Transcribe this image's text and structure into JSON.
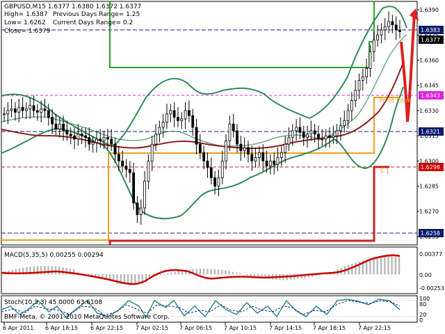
{
  "colors": {
    "background": "#ffffff",
    "grid": "#c8c8c8",
    "candle": "#000000",
    "bollinger": "#2e8b57",
    "ma": "#8b2020",
    "pivot": "#f0a020",
    "support": "#cc2020",
    "resistance": "#2ca02c",
    "arrow": "#dd2020",
    "macd_hist": "#b8b8b8",
    "macd_signal": "#cc0000",
    "stoch_main": "#2e8b8b",
    "stoch_signal": "#1a1a8b",
    "label_bg": "#0b1c6e",
    "price_box": "#000000",
    "magenta": "#e020e0",
    "red": "#cc0000"
  },
  "header": {
    "symbol": "GBPUSD,M15  1.6377 1.6380 1.6372 1.6377",
    "high": "High= 1.6387",
    "prev_range": "Previous Days Range= 1.25",
    "low": "Low= 1.6262",
    "curr_range": "Current Days Range= 0.2",
    "close": "Close= 1.6379"
  },
  "price_axis": {
    "ticks": [
      "1.6390",
      "1.6375",
      "1.6360",
      "1.6345",
      "1.6330",
      "1.6315",
      "1.6300",
      "1.6285",
      "1.6270",
      "1.6255"
    ]
  },
  "level_labels": {
    "l1": "1.6383",
    "l2": "1.6377",
    "l3": "1.6343",
    "l4": "1.6321",
    "l5": "1.6298",
    "l6": "1.6258"
  },
  "annotations": {
    "pivot_point": "Pivot Point",
    "s1": "S 1"
  },
  "macd": {
    "title": "MACD(5,35,5) 0.00255 0.00294",
    "ticks": [
      "0.00377",
      "0.00",
      "-0.00253"
    ]
  },
  "stoch": {
    "title": "Stoch(10,3,3) 45.0000 63.6108",
    "ticks": [
      "100",
      "80",
      "20",
      "0"
    ]
  },
  "copyright": "BMF-Meta, © 2001-2010 MetaQuotes Software Corp.",
  "time_axis": {
    "ticks": [
      "6 Apr 2011",
      "6 Apr 18:15",
      "6 Apr 22:15",
      "7 Apr 02:15",
      "7 Apr 06:15",
      "7 Apr 10:15",
      "7 Apr 14:15",
      "7 Apr 18:15",
      "7 Apr 22:15"
    ]
  },
  "chart_data": {
    "type": "candlestick",
    "symbol": "GBPUSD",
    "timeframe": "M15",
    "ylim": [
      1.625,
      1.6395
    ],
    "levels": [
      1.6383,
      1.6377,
      1.6343,
      1.6321,
      1.6298,
      1.6258
    ],
    "close_series": [
      1.6328,
      1.633,
      1.6331,
      1.6329,
      1.6332,
      1.633,
      1.6331,
      1.6333,
      1.633,
      1.6329,
      1.6331,
      1.633,
      1.6326,
      1.6322,
      1.6319,
      1.6322,
      1.6318,
      1.6316,
      1.6315,
      1.6313,
      1.6316,
      1.6315,
      1.6314,
      1.631,
      1.6311,
      1.6313,
      1.6312,
      1.6314,
      1.6313,
      1.631,
      1.6304,
      1.63,
      1.6297,
      1.6295,
      1.6293,
      1.6275,
      1.6268,
      1.6272,
      1.6288,
      1.63,
      1.631,
      1.6316,
      1.632,
      1.6323,
      1.6328,
      1.633,
      1.6326,
      1.6324,
      1.6325,
      1.633,
      1.6327,
      1.632,
      1.631,
      1.6305,
      1.63,
      1.6296,
      1.629,
      1.6285,
      1.629,
      1.63,
      1.6312,
      1.6322,
      1.6318,
      1.631,
      1.6306,
      1.6308,
      1.6304,
      1.63,
      1.6302,
      1.6305,
      1.63,
      1.6297,
      1.63,
      1.6298,
      1.6302,
      1.6305,
      1.631,
      1.6314,
      1.6318,
      1.632,
      1.6317,
      1.6314,
      1.6316,
      1.6318,
      1.6316,
      1.6313,
      1.6313,
      1.6315,
      1.6314,
      1.6315,
      1.6318,
      1.6321,
      1.6324,
      1.633,
      1.6336,
      1.6342,
      1.6348,
      1.635,
      1.6355,
      1.6365,
      1.6372,
      1.6375,
      1.6378,
      1.638,
      1.6383,
      1.6381,
      1.6378,
      1.6377
    ]
  }
}
